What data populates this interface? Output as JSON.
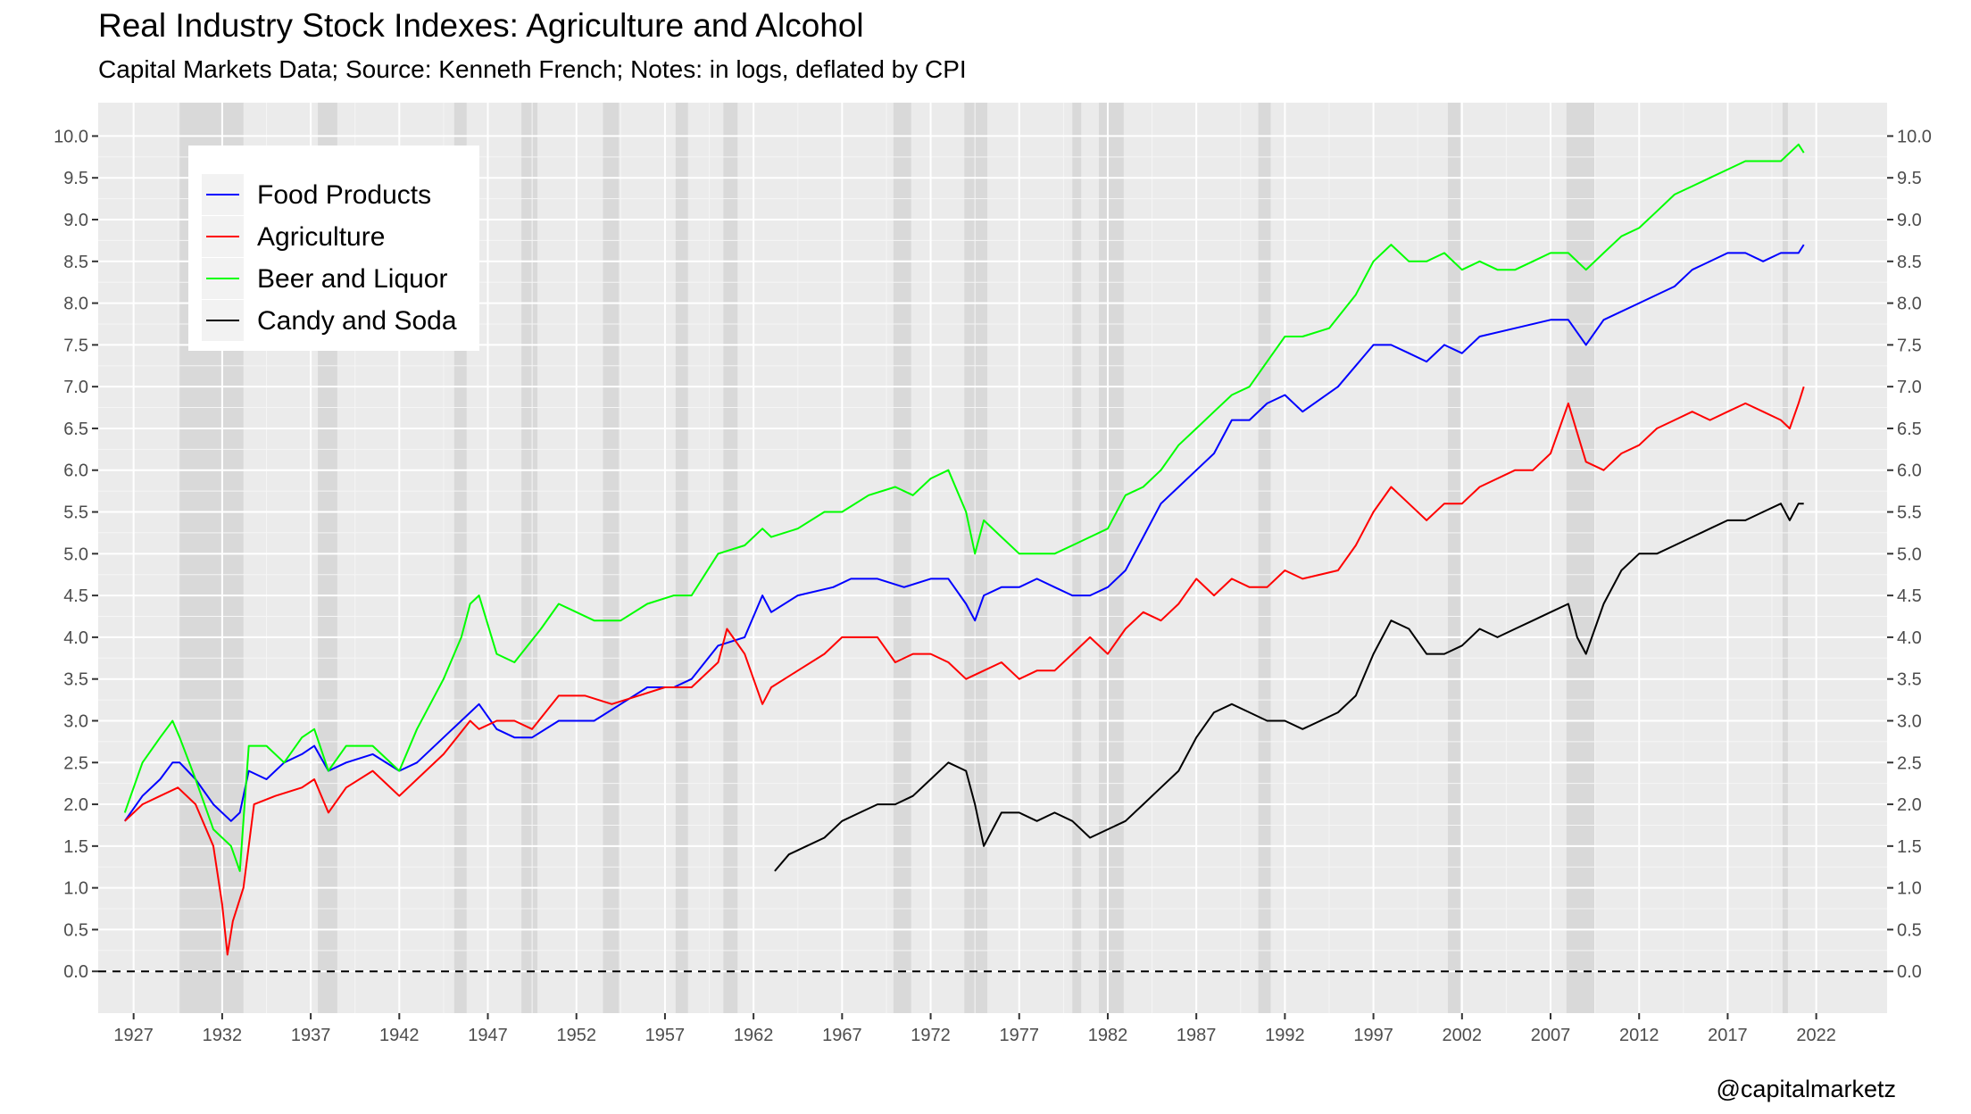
{
  "title": "Real Industry Stock Indexes: Agriculture and Alcohol",
  "subtitle": "Capital Markets Data; Source: Kenneth French; Notes: in logs, deflated by CPI",
  "credit": "@capitalmarketz",
  "chart_data": {
    "type": "line",
    "title": "Real Industry Stock Indexes: Agriculture and Alcohol",
    "subtitle": "Capital Markets Data; Source: Kenneth French; Notes: in logs, deflated by CPI",
    "xlabel": "",
    "ylabel": "",
    "xlim": [
      1925.0,
      2026.0
    ],
    "ylim": [
      -0.5,
      10.4
    ],
    "x_ticks": [
      1927,
      1932,
      1937,
      1942,
      1947,
      1952,
      1957,
      1962,
      1967,
      1972,
      1977,
      1982,
      1987,
      1992,
      1997,
      2002,
      2007,
      2012,
      2017,
      2022
    ],
    "y_ticks": [
      "0.0",
      "0.5",
      "1.0",
      "1.5",
      "2.0",
      "2.5",
      "3.0",
      "3.5",
      "4.0",
      "4.5",
      "5.0",
      "5.5",
      "6.0",
      "6.5",
      "7.0",
      "7.5",
      "8.0",
      "8.5",
      "9.0",
      "9.5",
      "10.0"
    ],
    "y_axis_both_sides": true,
    "grid": true,
    "zero_line": "dashed",
    "legend_position": "top-left",
    "recessions": [
      [
        1929.6,
        1933.2
      ],
      [
        1937.4,
        1938.5
      ],
      [
        1945.1,
        1945.8
      ],
      [
        1948.9,
        1949.8
      ],
      [
        1953.5,
        1954.4
      ],
      [
        1957.6,
        1958.3
      ],
      [
        1960.3,
        1961.1
      ],
      [
        1969.9,
        1970.9
      ],
      [
        1973.9,
        1975.2
      ],
      [
        1980.0,
        1980.5
      ],
      [
        1981.5,
        1982.9
      ],
      [
        1990.5,
        1991.2
      ],
      [
        2001.2,
        2001.9
      ],
      [
        2007.9,
        2009.5
      ],
      [
        2020.1,
        2020.4
      ]
    ],
    "series": [
      {
        "name": "Food Products",
        "color": "#0000ff",
        "x": [
          1926.5,
          1927.5,
          1928.5,
          1929.2,
          1929.6,
          1930.5,
          1931.5,
          1932.5,
          1933.0,
          1933.5,
          1934.5,
          1935.5,
          1936.5,
          1937.2,
          1938.0,
          1939.0,
          1940.5,
          1942.0,
          1943.0,
          1944.5,
          1946.0,
          1946.5,
          1947.5,
          1948.5,
          1949.5,
          1951.0,
          1953.0,
          1954.5,
          1956.0,
          1957.5,
          1958.5,
          1960.0,
          1961.5,
          1962.5,
          1963.0,
          1964.5,
          1966.5,
          1967.5,
          1969.0,
          1970.5,
          1972.0,
          1973.0,
          1974.0,
          1974.5,
          1975.0,
          1976.0,
          1977.0,
          1978.0,
          1979.0,
          1980.0,
          1981.0,
          1982.0,
          1983.0,
          1984.0,
          1985.0,
          1986.0,
          1987.0,
          1988.0,
          1989.0,
          1990.0,
          1991.0,
          1992.0,
          1993.0,
          1995.0,
          1997.0,
          1998.0,
          1999.0,
          2000.0,
          2001.0,
          2002.0,
          2003.0,
          2005.0,
          2007.0,
          2008.0,
          2009.0,
          2010.0,
          2012.0,
          2014.0,
          2015.0,
          2017.0,
          2018.0,
          2019.0,
          2020.0,
          2021.0,
          2021.3
        ],
        "y": [
          1.8,
          2.1,
          2.3,
          2.5,
          2.5,
          2.3,
          2.0,
          1.8,
          1.9,
          2.4,
          2.3,
          2.5,
          2.6,
          2.7,
          2.4,
          2.5,
          2.6,
          2.4,
          2.5,
          2.8,
          3.1,
          3.2,
          2.9,
          2.8,
          2.8,
          3.0,
          3.0,
          3.2,
          3.4,
          3.4,
          3.5,
          3.9,
          4.0,
          4.5,
          4.3,
          4.5,
          4.6,
          4.7,
          4.7,
          4.6,
          4.7,
          4.7,
          4.4,
          4.2,
          4.5,
          4.6,
          4.6,
          4.7,
          4.6,
          4.5,
          4.5,
          4.6,
          4.8,
          5.2,
          5.6,
          5.8,
          6.0,
          6.2,
          6.6,
          6.6,
          6.8,
          6.9,
          6.7,
          7.0,
          7.5,
          7.5,
          7.4,
          7.3,
          7.5,
          7.4,
          7.6,
          7.7,
          7.8,
          7.8,
          7.5,
          7.8,
          8.0,
          8.2,
          8.4,
          8.6,
          8.6,
          8.5,
          8.6,
          8.6,
          8.7
        ]
      },
      {
        "name": "Agriculture",
        "color": "#ff0000",
        "x": [
          1926.5,
          1927.5,
          1928.5,
          1929.5,
          1930.5,
          1931.5,
          1932.0,
          1932.3,
          1932.6,
          1933.2,
          1933.8,
          1935.0,
          1936.5,
          1937.2,
          1938.0,
          1939.0,
          1940.5,
          1942.0,
          1943.0,
          1944.5,
          1946.0,
          1946.5,
          1947.5,
          1948.5,
          1949.5,
          1951.0,
          1952.5,
          1954.0,
          1955.5,
          1957.0,
          1958.5,
          1960.0,
          1960.5,
          1961.5,
          1962.5,
          1963.0,
          1964.5,
          1966.0,
          1967.0,
          1968.0,
          1969.0,
          1970.0,
          1971.0,
          1972.0,
          1973.0,
          1974.0,
          1975.0,
          1976.0,
          1977.0,
          1978.0,
          1979.0,
          1980.0,
          1981.0,
          1982.0,
          1983.0,
          1984.0,
          1985.0,
          1986.0,
          1987.0,
          1988.0,
          1989.0,
          1990.0,
          1991.0,
          1992.0,
          1993.0,
          1995.0,
          1996.0,
          1997.0,
          1998.0,
          1999.0,
          2000.0,
          2001.0,
          2002.0,
          2003.0,
          2005.0,
          2006.0,
          2007.0,
          2008.0,
          2009.0,
          2010.0,
          2011.0,
          2012.0,
          2013.0,
          2014.0,
          2015.0,
          2016.0,
          2017.0,
          2018.0,
          2019.0,
          2020.0,
          2020.5,
          2021.0,
          2021.3
        ],
        "y": [
          1.8,
          2.0,
          2.1,
          2.2,
          2.0,
          1.5,
          0.8,
          0.2,
          0.6,
          1.0,
          2.0,
          2.1,
          2.2,
          2.3,
          1.9,
          2.2,
          2.4,
          2.1,
          2.3,
          2.6,
          3.0,
          2.9,
          3.0,
          3.0,
          2.9,
          3.3,
          3.3,
          3.2,
          3.3,
          3.4,
          3.4,
          3.7,
          4.1,
          3.8,
          3.2,
          3.4,
          3.6,
          3.8,
          4.0,
          4.0,
          4.0,
          3.7,
          3.8,
          3.8,
          3.7,
          3.5,
          3.6,
          3.7,
          3.5,
          3.6,
          3.6,
          3.8,
          4.0,
          3.8,
          4.1,
          4.3,
          4.2,
          4.4,
          4.7,
          4.5,
          4.7,
          4.6,
          4.6,
          4.8,
          4.7,
          4.8,
          5.1,
          5.5,
          5.8,
          5.6,
          5.4,
          5.6,
          5.6,
          5.8,
          6.0,
          6.0,
          6.2,
          6.8,
          6.1,
          6.0,
          6.2,
          6.3,
          6.5,
          6.6,
          6.7,
          6.6,
          6.7,
          6.8,
          6.7,
          6.6,
          6.5,
          6.8,
          7.0
        ]
      },
      {
        "name": "Beer and Liquor",
        "color": "#00ff00",
        "x": [
          1926.5,
          1927.5,
          1928.5,
          1929.2,
          1929.6,
          1930.5,
          1931.5,
          1932.5,
          1933.0,
          1933.5,
          1934.5,
          1935.5,
          1936.5,
          1937.2,
          1938.0,
          1939.0,
          1940.5,
          1942.0,
          1943.0,
          1944.5,
          1945.5,
          1946.0,
          1946.5,
          1947.5,
          1948.5,
          1950.0,
          1951.0,
          1953.0,
          1954.5,
          1956.0,
          1957.5,
          1958.5,
          1960.0,
          1961.5,
          1962.5,
          1963.0,
          1964.5,
          1966.0,
          1967.0,
          1968.5,
          1970.0,
          1971.0,
          1972.0,
          1973.0,
          1974.0,
          1974.5,
          1975.0,
          1976.0,
          1977.0,
          1978.0,
          1979.0,
          1980.0,
          1981.0,
          1982.0,
          1983.0,
          1984.0,
          1985.0,
          1986.0,
          1987.0,
          1988.0,
          1989.0,
          1990.0,
          1991.0,
          1992.0,
          1993.0,
          1994.5,
          1996.0,
          1997.0,
          1998.0,
          1999.0,
          2000.0,
          2001.0,
          2002.0,
          2003.0,
          2004.0,
          2005.0,
          2006.0,
          2007.0,
          2008.0,
          2009.0,
          2010.0,
          2011.0,
          2012.0,
          2013.0,
          2014.0,
          2015.0,
          2016.0,
          2017.0,
          2018.0,
          2019.0,
          2020.0,
          2021.0,
          2021.3
        ],
        "y": [
          1.9,
          2.5,
          2.8,
          3.0,
          2.8,
          2.3,
          1.7,
          1.5,
          1.2,
          2.7,
          2.7,
          2.5,
          2.8,
          2.9,
          2.4,
          2.7,
          2.7,
          2.4,
          2.9,
          3.5,
          4.0,
          4.4,
          4.5,
          3.8,
          3.7,
          4.1,
          4.4,
          4.2,
          4.2,
          4.4,
          4.5,
          4.5,
          5.0,
          5.1,
          5.3,
          5.2,
          5.3,
          5.5,
          5.5,
          5.7,
          5.8,
          5.7,
          5.9,
          6.0,
          5.5,
          5.0,
          5.4,
          5.2,
          5.0,
          5.0,
          5.0,
          5.1,
          5.2,
          5.3,
          5.7,
          5.8,
          6.0,
          6.3,
          6.5,
          6.7,
          6.9,
          7.0,
          7.3,
          7.6,
          7.6,
          7.7,
          8.1,
          8.5,
          8.7,
          8.5,
          8.5,
          8.6,
          8.4,
          8.5,
          8.4,
          8.4,
          8.5,
          8.6,
          8.6,
          8.4,
          8.6,
          8.8,
          8.9,
          9.1,
          9.3,
          9.4,
          9.5,
          9.6,
          9.7,
          9.7,
          9.7,
          9.9,
          9.8
        ]
      },
      {
        "name": "Candy and Soda",
        "color": "#000000",
        "x": [
          1963.2,
          1964.0,
          1965.0,
          1966.0,
          1967.0,
          1968.0,
          1969.0,
          1970.0,
          1971.0,
          1972.0,
          1973.0,
          1974.0,
          1974.5,
          1975.0,
          1976.0,
          1977.0,
          1978.0,
          1979.0,
          1980.0,
          1981.0,
          1982.0,
          1983.0,
          1984.0,
          1985.0,
          1986.0,
          1987.0,
          1988.0,
          1989.0,
          1990.0,
          1991.0,
          1992.0,
          1993.0,
          1994.0,
          1995.0,
          1996.0,
          1997.0,
          1998.0,
          1999.0,
          2000.0,
          2001.0,
          2002.0,
          2003.0,
          2004.0,
          2005.0,
          2006.0,
          2007.0,
          2008.0,
          2008.5,
          2009.0,
          2010.0,
          2011.0,
          2012.0,
          2013.0,
          2014.0,
          2015.0,
          2016.0,
          2017.0,
          2018.0,
          2019.0,
          2020.0,
          2020.5,
          2021.0,
          2021.3
        ],
        "y": [
          1.2,
          1.4,
          1.5,
          1.6,
          1.8,
          1.9,
          2.0,
          2.0,
          2.1,
          2.3,
          2.5,
          2.4,
          2.0,
          1.5,
          1.9,
          1.9,
          1.8,
          1.9,
          1.8,
          1.6,
          1.7,
          1.8,
          2.0,
          2.2,
          2.4,
          2.8,
          3.1,
          3.2,
          3.1,
          3.0,
          3.0,
          2.9,
          3.0,
          3.1,
          3.3,
          3.8,
          4.2,
          4.1,
          3.8,
          3.8,
          3.9,
          4.1,
          4.0,
          4.1,
          4.2,
          4.3,
          4.4,
          4.0,
          3.8,
          4.4,
          4.8,
          5.0,
          5.0,
          5.1,
          5.2,
          5.3,
          5.4,
          5.4,
          5.5,
          5.6,
          5.4,
          5.6,
          5.6
        ]
      }
    ]
  }
}
